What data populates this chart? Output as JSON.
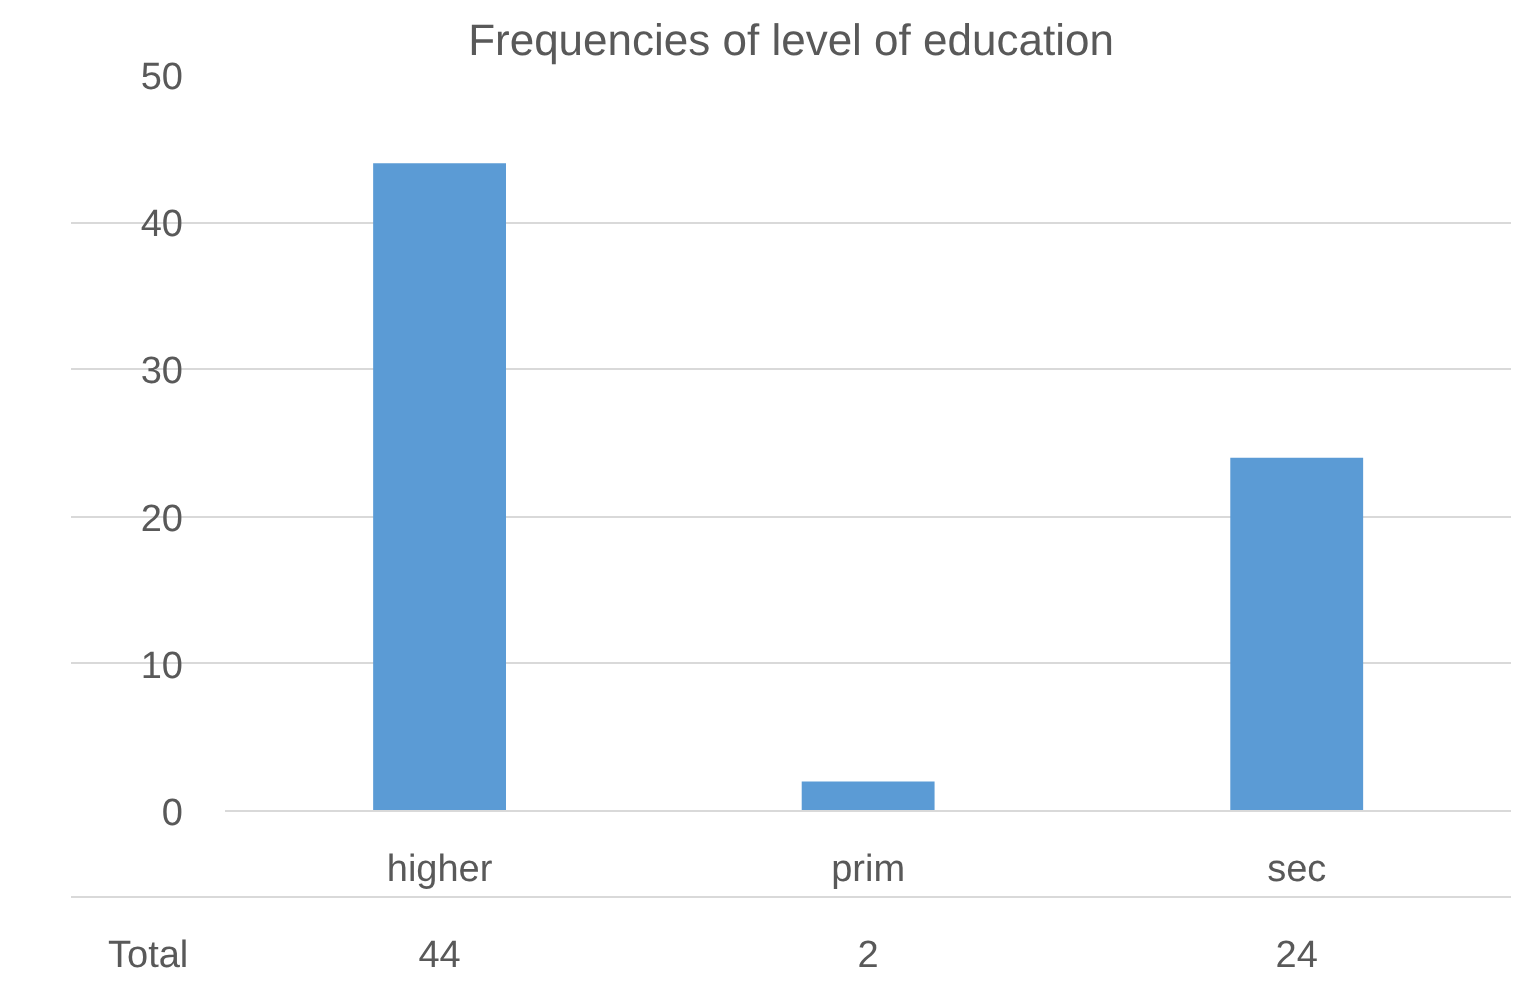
{
  "chart_data": {
    "type": "bar",
    "title": "Frequencies of level of education",
    "categories": [
      "higher",
      "prim",
      "sec"
    ],
    "series": [
      {
        "name": "Total",
        "color": "#5b9bd5",
        "values": [
          44,
          2,
          24
        ]
      }
    ],
    "ylim": [
      0,
      50
    ],
    "yticks": [
      0,
      10,
      20,
      30,
      40,
      50
    ],
    "grid": "y",
    "data_labels": true
  }
}
